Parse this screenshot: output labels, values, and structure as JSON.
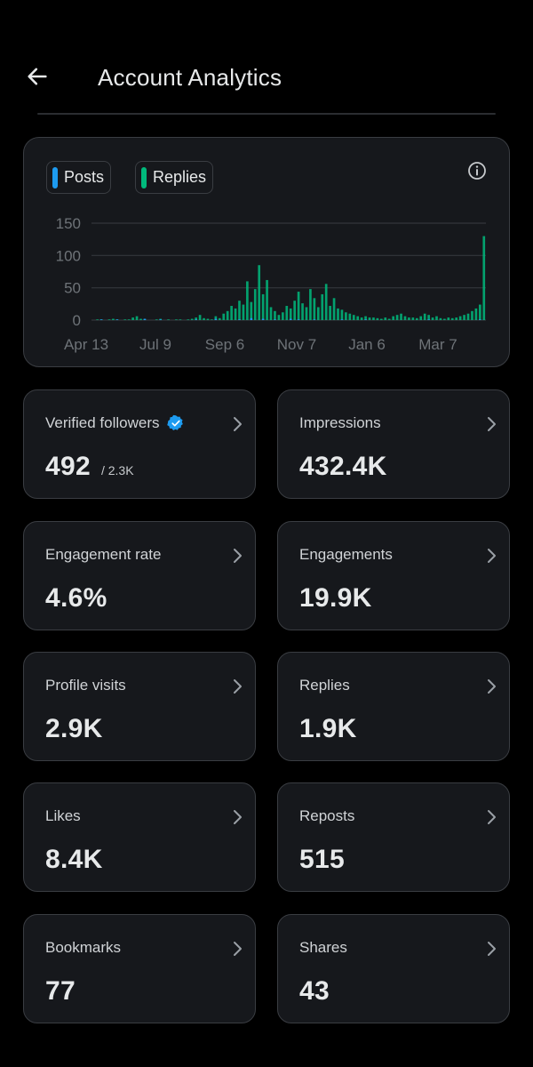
{
  "header": {
    "title": "Account Analytics"
  },
  "chart": {
    "legend": [
      {
        "label": "Posts",
        "color": "#1d9bf0"
      },
      {
        "label": "Replies",
        "color": "#00ba7c"
      }
    ]
  },
  "chart_data": {
    "type": "bar",
    "title": "",
    "xlabel": "",
    "ylabel": "",
    "ylim": [
      0,
      150
    ],
    "yticks": [
      0,
      50,
      100,
      150
    ],
    "xtick_labels": [
      "Apr 13",
      "Jul 9",
      "Sep 6",
      "Nov 7",
      "Jan 6",
      "Mar 7"
    ],
    "series": [
      {
        "name": "Posts",
        "color": "#1d9bf0",
        "values": [
          0,
          0,
          1,
          0,
          0,
          0,
          1,
          0,
          0,
          0,
          0,
          0,
          0,
          2,
          0,
          0,
          0,
          1,
          0,
          0,
          0,
          0,
          0,
          0,
          0,
          0,
          1,
          0,
          0,
          0,
          0,
          2,
          0,
          0,
          0,
          0,
          0,
          1,
          0,
          0,
          3,
          0,
          0,
          2,
          0,
          0,
          1,
          0,
          0,
          0,
          2,
          0,
          1,
          0,
          0,
          0,
          1,
          0,
          0,
          0,
          0,
          0,
          0,
          1,
          0,
          0,
          0,
          0,
          0,
          1,
          0,
          0,
          0,
          0,
          0,
          0,
          0,
          0,
          0,
          0,
          0,
          0,
          0,
          0,
          0,
          1,
          0,
          0,
          0,
          0,
          0,
          0,
          0,
          0,
          0,
          0,
          0,
          0,
          1,
          0
        ]
      },
      {
        "name": "Replies",
        "color": "#00ba7c",
        "values": [
          0,
          1,
          1,
          0,
          1,
          2,
          1,
          0,
          1,
          1,
          4,
          6,
          2,
          1,
          0,
          0,
          1,
          2,
          0,
          1,
          0,
          1,
          1,
          0,
          1,
          2,
          4,
          8,
          3,
          2,
          1,
          6,
          3,
          10,
          14,
          22,
          18,
          30,
          24,
          60,
          28,
          48,
          85,
          40,
          62,
          20,
          14,
          8,
          12,
          22,
          18,
          30,
          44,
          26,
          20,
          48,
          34,
          20,
          40,
          56,
          22,
          34,
          18,
          16,
          12,
          10,
          8,
          6,
          4,
          6,
          4,
          4,
          3,
          2,
          4,
          2,
          6,
          8,
          10,
          6,
          4,
          4,
          3,
          6,
          10,
          8,
          4,
          6,
          3,
          2,
          4,
          3,
          4,
          6,
          8,
          10,
          14,
          18,
          24,
          130
        ]
      }
    ]
  },
  "stats": [
    {
      "label": "Verified followers",
      "value": "492",
      "sub": "/ 2.3K"
    },
    {
      "label": "Impressions",
      "value": "432.4K"
    },
    {
      "label": "Engagement rate",
      "value": "4.6%"
    },
    {
      "label": "Engagements",
      "value": "19.9K"
    },
    {
      "label": "Profile visits",
      "value": "2.9K"
    },
    {
      "label": "Replies",
      "value": "1.9K"
    },
    {
      "label": "Likes",
      "value": "8.4K"
    },
    {
      "label": "Reposts",
      "value": "515"
    },
    {
      "label": "Bookmarks",
      "value": "77"
    },
    {
      "label": "Shares",
      "value": "43"
    }
  ],
  "colors": {
    "background": "#000000",
    "card": "#16181c",
    "border": "#3a3d42",
    "verified": "#1d9bf0"
  }
}
